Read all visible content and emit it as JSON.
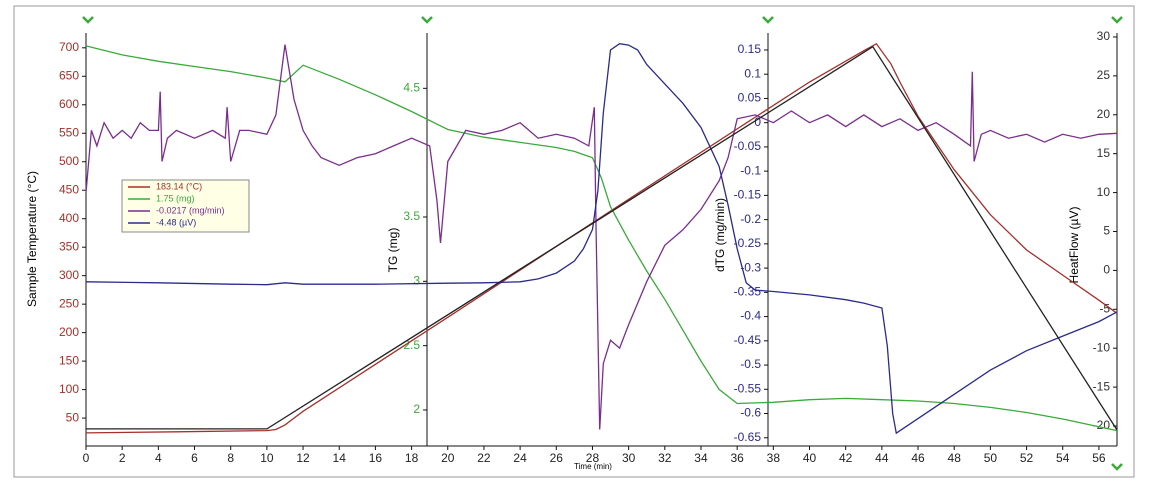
{
  "chart_data": {
    "type": "line",
    "xlabel": "Time (min)",
    "xlim": [
      0,
      57
    ],
    "xticks": [
      0,
      2,
      4,
      6,
      8,
      10,
      12,
      14,
      16,
      18,
      20,
      22,
      24,
      26,
      28,
      30,
      32,
      34,
      36,
      38,
      40,
      42,
      44,
      46,
      48,
      50,
      52,
      54,
      56
    ],
    "ylabel": "Sample Temperature (°C)",
    "ylim": [
      1,
      726
    ],
    "yticks": [
      50,
      100,
      150,
      200,
      250,
      300,
      350,
      400,
      450,
      500,
      550,
      600,
      650,
      700
    ],
    "y2label": "TG (mg)",
    "y2lim": [
      1.72,
      4.93
    ],
    "y2ticks": [
      2,
      2.5,
      3,
      3.5,
      4.5
    ],
    "y3label": "dTG (mg/min)",
    "y3lim": [
      -0.667,
      0.185
    ],
    "y3ticks": [
      0.15,
      0.1,
      0.05,
      0,
      -0.05,
      -0.1,
      -0.15,
      -0.2,
      -0.25,
      -0.3,
      -0.35,
      -0.4,
      -0.45,
      -0.5,
      -0.55,
      -0.6,
      -0.65
    ],
    "y4label": "HeatFlow (µV)",
    "y4lim": [
      -22.57,
      30.51
    ],
    "y4ticks": [
      30,
      25,
      20,
      15,
      10,
      5,
      0,
      -5,
      -10,
      -15,
      -20
    ],
    "series": [
      {
        "name": "183.14 (°C)",
        "color": "#a5302a",
        "axis": "y",
        "x": [
          0,
          5,
          10,
          10.5,
          11,
          11.5,
          12,
          20,
          30,
          40,
          43,
          43.7,
          44.5,
          45,
          46,
          48,
          50,
          52,
          54,
          56,
          57
        ],
        "values": [
          24,
          26,
          28,
          30,
          38,
          50,
          62,
          227,
          434,
          640,
          695,
          707,
          672,
          640,
          580,
          486,
          407,
          345,
          301,
          257,
          234
        ]
      },
      {
        "name": "1.75 (mg)",
        "color": "#3aaa3a",
        "axis": "y2",
        "x": [
          0,
          2,
          4,
          6,
          8,
          10,
          11,
          12,
          14,
          16,
          18,
          20,
          22,
          24,
          26,
          27,
          28,
          28.5,
          29,
          30,
          31,
          32,
          33,
          34,
          35,
          36,
          38,
          40,
          42,
          44,
          46,
          48,
          50,
          52,
          54,
          56,
          57
        ],
        "values": [
          4.83,
          4.76,
          4.71,
          4.67,
          4.63,
          4.58,
          4.55,
          4.68,
          4.57,
          4.45,
          4.32,
          4.18,
          4.12,
          4.08,
          4.04,
          4.01,
          3.96,
          3.8,
          3.58,
          3.32,
          3.08,
          2.86,
          2.62,
          2.38,
          2.16,
          2.05,
          2.06,
          2.08,
          2.09,
          2.08,
          2.07,
          2.05,
          2.02,
          1.98,
          1.93,
          1.87,
          1.84
        ]
      },
      {
        "name": "-0.0217 (mg/min)",
        "color": "#7b2d8e",
        "axis": "y3",
        "x": [
          0,
          0.3,
          0.6,
          1,
          1.5,
          2,
          2.5,
          3,
          3.5,
          4,
          4.1,
          4.2,
          4.5,
          5,
          6,
          7,
          7.7,
          7.8,
          8,
          8.5,
          9,
          10,
          10.5,
          11,
          11.5,
          12,
          12.5,
          13,
          14,
          15,
          16,
          17,
          18,
          19,
          19.4,
          19.6,
          20,
          21,
          22,
          23,
          24,
          25,
          26,
          27,
          27.8,
          28.1,
          28.2,
          28.4,
          28.6,
          29,
          29.5,
          30,
          31,
          32,
          33,
          34,
          35,
          35.5,
          36,
          37,
          38,
          39,
          40,
          41,
          42,
          43,
          44,
          45,
          46,
          47,
          48,
          48.9,
          49,
          49.1,
          49.5,
          50,
          51,
          52,
          53,
          54,
          55,
          56,
          57
        ],
        "values": [
          -0.144,
          -0.016,
          -0.048,
          0,
          -0.032,
          -0.016,
          -0.032,
          0,
          -0.016,
          -0.016,
          0.064,
          -0.08,
          -0.032,
          -0.016,
          -0.032,
          -0.016,
          -0.032,
          0.032,
          -0.08,
          -0.016,
          -0.016,
          -0.024,
          0.016,
          0.161,
          0.048,
          -0.016,
          -0.048,
          -0.072,
          -0.088,
          -0.072,
          -0.064,
          -0.048,
          -0.032,
          -0.048,
          -0.16,
          -0.248,
          -0.08,
          -0.016,
          -0.024,
          -0.016,
          0,
          -0.032,
          -0.024,
          -0.032,
          -0.048,
          0.032,
          -0.224,
          -0.633,
          -0.497,
          -0.449,
          -0.465,
          -0.417,
          -0.328,
          -0.253,
          -0.221,
          -0.179,
          -0.12,
          -0.072,
          0.008,
          0.016,
          0,
          0.024,
          0,
          0.016,
          -0.008,
          0.016,
          -0.008,
          0.008,
          -0.016,
          0,
          -0.024,
          -0.048,
          0.105,
          -0.08,
          -0.024,
          -0.016,
          -0.032,
          -0.024,
          -0.04,
          -0.024,
          -0.032,
          -0.024,
          -0.022
        ]
      },
      {
        "name": "-4.48 (µV)",
        "color": "#2b2b8c",
        "axis": "y4",
        "x": [
          0,
          4,
          8,
          10,
          11,
          12,
          16,
          20,
          22,
          24,
          25,
          26,
          27,
          27.5,
          28,
          28.3,
          28.6,
          29,
          29.5,
          30,
          30.5,
          31,
          32,
          33,
          34,
          35,
          35.5,
          36,
          36.5,
          37,
          38,
          40,
          42,
          43,
          44,
          44.3,
          44.6,
          44.8,
          45,
          46,
          48,
          50,
          52,
          54,
          56,
          57
        ],
        "values": [
          -1.47,
          -1.59,
          -1.78,
          -1.84,
          -1.59,
          -1.78,
          -1.78,
          -1.65,
          -1.59,
          -1.47,
          -1.09,
          -0.35,
          1.21,
          2.77,
          5.27,
          10.25,
          20.23,
          28.33,
          29.14,
          28.95,
          28.33,
          26.46,
          23.97,
          21.47,
          18.36,
          13.37,
          8.38,
          2.77,
          -1.59,
          -2.53,
          -2.71,
          -3.15,
          -3.77,
          -4.21,
          -4.83,
          -9.7,
          -18.42,
          -20.92,
          -20.61,
          -19.05,
          -15.93,
          -12.81,
          -10.32,
          -8.45,
          -6.58,
          -5.33
        ]
      },
      {
        "color": "#222222",
        "axis": "y",
        "x": [
          0,
          10,
          43.5,
          57
        ],
        "values": [
          31,
          31,
          702,
          29
        ]
      }
    ]
  }
}
